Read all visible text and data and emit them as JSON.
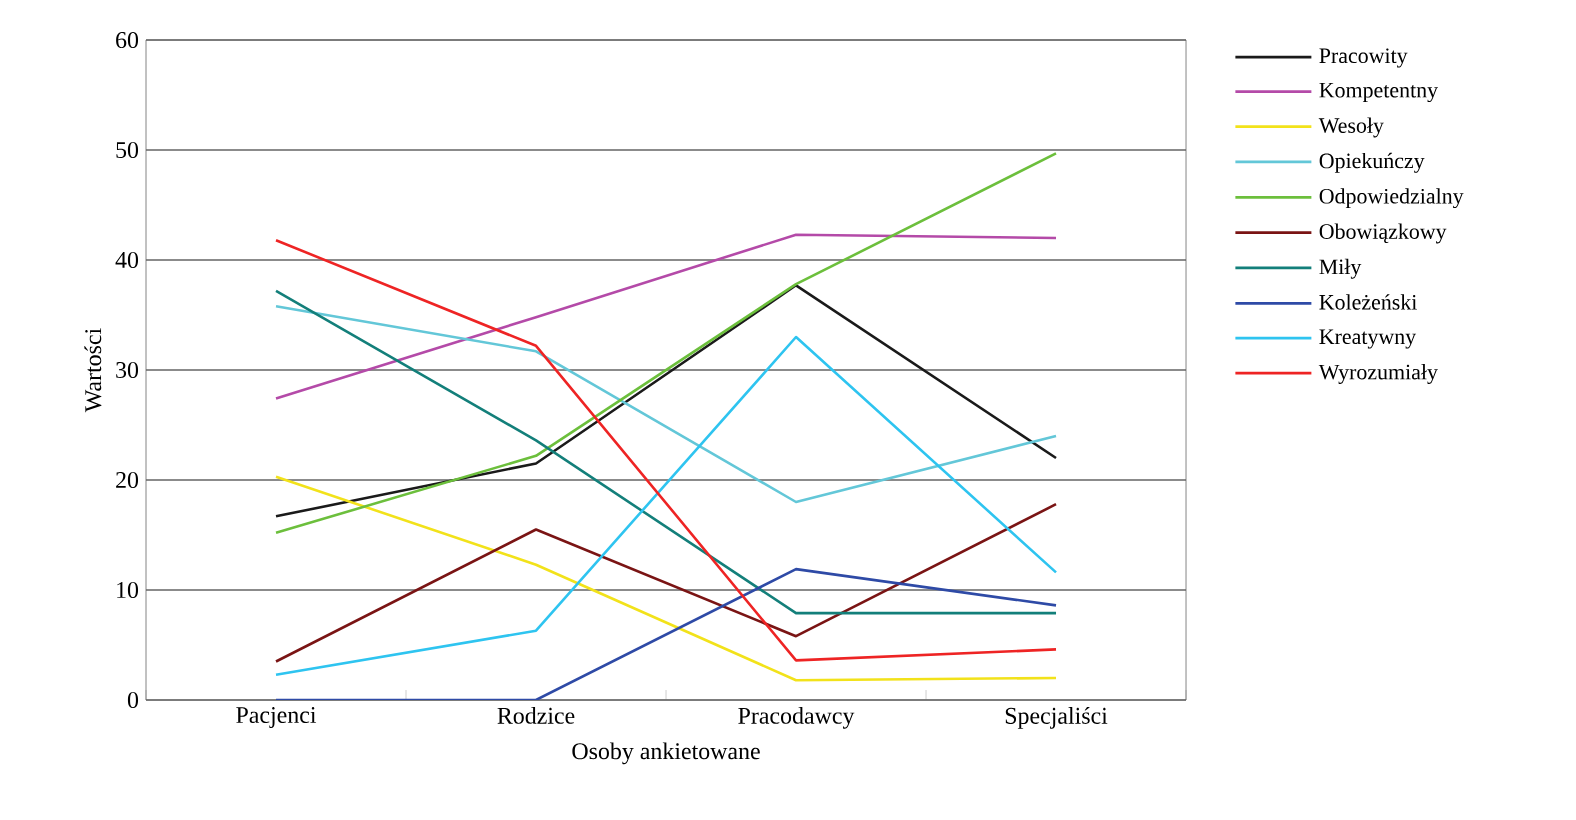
{
  "chart_data": {
    "type": "line",
    "xlabel": "Osoby ankietowane",
    "ylabel": "Wartości",
    "categories": [
      "Pacjenci",
      "Rodzice",
      "Pracodawcy",
      "Specjaliści"
    ],
    "ylim": [
      0,
      60
    ],
    "yticks": [
      0,
      10,
      20,
      30,
      40,
      50,
      60
    ],
    "grid": "y",
    "legend": "right",
    "marker": "none",
    "line_style": "solid",
    "series": [
      {
        "name": "Pracowity",
        "color": "#1a1a1a",
        "values": [
          16.7,
          21.5,
          37.7,
          22
        ]
      },
      {
        "name": "Kompetentny",
        "color": "#b44aa8",
        "values": [
          27.4,
          34.8,
          42.3,
          42
        ]
      },
      {
        "name": "Wesoły",
        "color": "#f2e21a",
        "values": [
          20.3,
          12.3,
          1.8,
          2
        ]
      },
      {
        "name": "Opiekuńczy",
        "color": "#63c7d8",
        "values": [
          35.8,
          31.7,
          18,
          24
        ]
      },
      {
        "name": "Odpowiedzialny",
        "color": "#6cbf3c",
        "values": [
          15.2,
          22.2,
          37.8,
          49.7
        ]
      },
      {
        "name": "Obowiązkowy",
        "color": "#7a1414",
        "values": [
          3.5,
          15.5,
          5.8,
          17.8
        ]
      },
      {
        "name": "Miły",
        "color": "#137f7a",
        "values": [
          37.2,
          23.6,
          7.9,
          7.9
        ]
      },
      {
        "name": "Koleżeński",
        "color": "#2e4aa6",
        "values": [
          0,
          0,
          11.9,
          8.6
        ]
      },
      {
        "name": "Kreatywny",
        "color": "#2ec4f0",
        "values": [
          2.3,
          6.3,
          33,
          11.6
        ]
      },
      {
        "name": "Wyrozumiały",
        "color": "#ee2424",
        "values": [
          41.8,
          32.2,
          3.6,
          4.6
        ]
      }
    ]
  }
}
